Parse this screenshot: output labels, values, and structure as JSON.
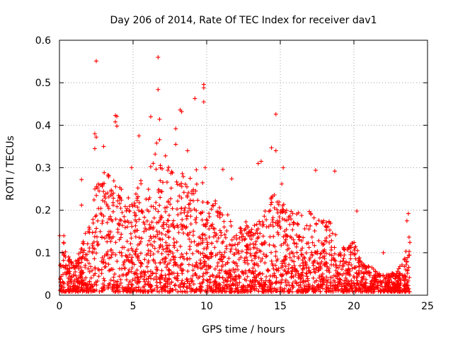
{
  "chart_data": {
    "type": "scatter",
    "title": "Day 206 of 2014, Rate Of TEC Index for receiver dav1",
    "xlabel": "GPS time / hours",
    "ylabel": "ROTI / TECUs",
    "xlim": [
      0,
      25
    ],
    "ylim": [
      0,
      0.6
    ],
    "xticks": [
      0,
      5,
      10,
      15,
      20,
      25
    ],
    "yticks": [
      0,
      0.1,
      0.2,
      0.3,
      0.4,
      0.5,
      0.6
    ],
    "xtick_labels": [
      "0",
      "5",
      "10",
      "15",
      "20",
      "25"
    ],
    "ytick_labels": [
      "0",
      "0.1",
      "0.2",
      "0.3",
      "0.4",
      "0.5",
      "0.6"
    ],
    "grid": true,
    "marker": "+",
    "color": "#ff0000",
    "series": [
      {
        "name": "dav1",
        "outliers": [
          [
            2.5,
            0.551
          ],
          [
            6.7,
            0.56
          ],
          [
            6.7,
            0.484
          ],
          [
            9.8,
            0.496
          ],
          [
            9.8,
            0.488
          ],
          [
            9.2,
            0.463
          ],
          [
            9.8,
            0.455
          ],
          [
            8.2,
            0.436
          ],
          [
            8.3,
            0.432
          ],
          [
            14.7,
            0.426
          ],
          [
            3.8,
            0.423
          ],
          [
            3.9,
            0.421
          ],
          [
            6.2,
            0.42
          ],
          [
            6.8,
            0.414
          ],
          [
            3.8,
            0.408
          ],
          [
            3.9,
            0.398
          ],
          [
            7.9,
            0.392
          ],
          [
            5.4,
            0.375
          ],
          [
            2.4,
            0.38
          ],
          [
            2.5,
            0.372
          ],
          [
            6.8,
            0.366
          ],
          [
            6.6,
            0.358
          ],
          [
            7.9,
            0.355
          ],
          [
            14.4,
            0.347
          ],
          [
            14.7,
            0.34
          ],
          [
            3.0,
            0.35
          ],
          [
            2.4,
            0.345
          ],
          [
            8.7,
            0.34
          ],
          [
            6.5,
            0.332
          ],
          [
            7.2,
            0.328
          ],
          [
            13.7,
            0.315
          ],
          [
            13.5,
            0.31
          ],
          [
            15.2,
            0.3
          ],
          [
            9.9,
            0.3
          ],
          [
            11.1,
            0.296
          ],
          [
            17.4,
            0.294
          ],
          [
            18.7,
            0.292
          ],
          [
            11.7,
            0.274
          ],
          [
            1.5,
            0.272
          ],
          [
            20.2,
            0.198
          ],
          [
            23.7,
            0.192
          ],
          [
            23.6,
            0.175
          ],
          [
            15.1,
            0.262
          ],
          [
            14.6,
            0.236
          ],
          [
            22.0,
            0.1
          ],
          [
            9.3,
            0.295
          ],
          [
            0.3,
            0.14
          ],
          [
            12.8,
            0.16
          ],
          [
            1.5,
            0.212
          ],
          [
            4.9,
            0.3
          ]
        ],
        "envelope_hours": [
          0,
          0.5,
          1,
          1.5,
          2,
          2.5,
          3,
          3.5,
          4,
          4.5,
          5,
          5.5,
          6,
          6.5,
          7,
          7.5,
          8,
          8.5,
          9,
          9.5,
          10,
          10.5,
          11,
          11.5,
          12,
          12.5,
          13,
          13.5,
          14,
          14.5,
          15,
          15.5,
          16,
          16.5,
          17,
          17.5,
          18,
          18.5,
          19,
          19.5,
          20,
          20.5,
          21,
          21.5,
          22,
          22.5,
          23,
          23.5,
          23.8
        ],
        "envelope_roti": [
          0.16,
          0.1,
          0.07,
          0.12,
          0.18,
          0.27,
          0.3,
          0.28,
          0.27,
          0.22,
          0.25,
          0.28,
          0.3,
          0.32,
          0.31,
          0.3,
          0.28,
          0.29,
          0.28,
          0.27,
          0.26,
          0.23,
          0.21,
          0.19,
          0.15,
          0.18,
          0.16,
          0.17,
          0.2,
          0.24,
          0.22,
          0.21,
          0.19,
          0.2,
          0.2,
          0.19,
          0.18,
          0.17,
          0.12,
          0.11,
          0.13,
          0.08,
          0.07,
          0.06,
          0.05,
          0.05,
          0.06,
          0.1,
          0.15
        ],
        "dense_point_count": 2600
      }
    ]
  }
}
